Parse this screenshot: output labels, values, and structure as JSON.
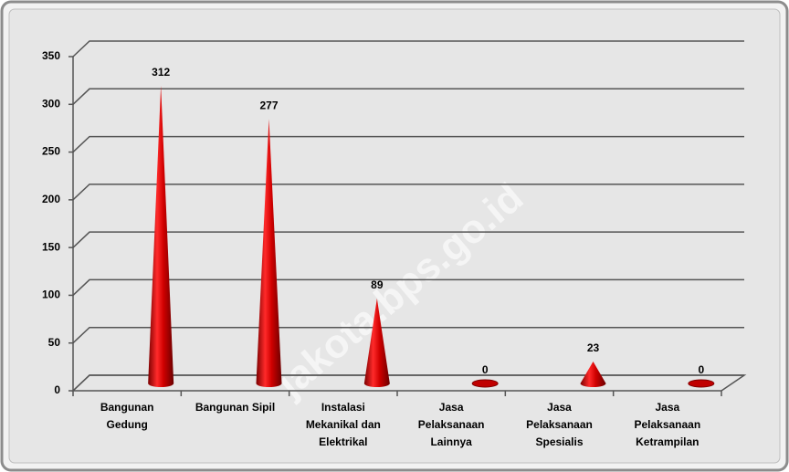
{
  "chart_data": {
    "type": "cone",
    "categories": [
      "Bangunan Gedung",
      "Bangunan Sipil",
      "Instalasi Mekanikal dan Elektrikal",
      "Jasa Pelaksanaan Lainnya",
      "Jasa Pelaksanaan Spesialis",
      "Jasa Pelaksanaan Ketrampilan"
    ],
    "values": [
      312,
      277,
      89,
      0,
      23,
      0
    ],
    "color": "#d40000",
    "ylim": [
      0,
      350
    ],
    "yticks": [
      0,
      50,
      100,
      150,
      200,
      250,
      300,
      350
    ],
    "grid": true,
    "watermark": "jakota.bps.go.id"
  }
}
